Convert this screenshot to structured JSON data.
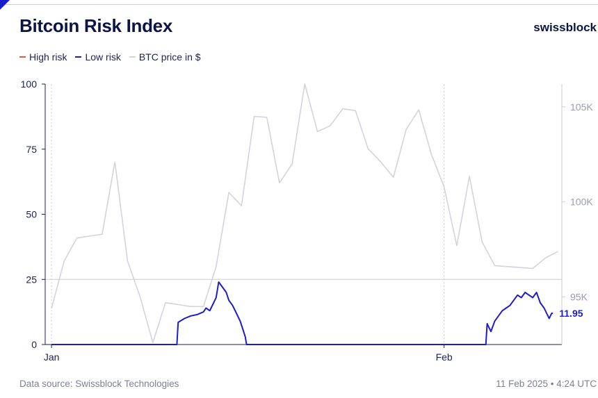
{
  "header": {
    "title": "Bitcoin Risk Index",
    "brand": "swissblock"
  },
  "footer": {
    "source": "Data source: Swissblock Technologies",
    "timestamp": "11 Feb 2025 • 4:24 UTC"
  },
  "colors": {
    "high_risk": "#e8563f",
    "low_risk": "#1c1ccf",
    "btc_price": "#d2d3df",
    "text": "#0b1446",
    "muted": "#7d7f94"
  },
  "chart_data": {
    "type": "line",
    "legend": [
      {
        "name": "High risk",
        "color": "#e8563f"
      },
      {
        "name": "Low risk",
        "color": "#1c1ccf"
      },
      {
        "name": "BTC price in $",
        "color": "#d2d3df"
      }
    ],
    "x_ticks": [
      {
        "label": "Jan",
        "day": 1
      },
      {
        "label": "Feb",
        "day": 32
      }
    ],
    "xlim": [
      0.5,
      41.3
    ],
    "left_axis": {
      "ticks": [
        0,
        25,
        50,
        75,
        100
      ],
      "ylim": [
        0,
        100
      ]
    },
    "right_axis": {
      "ticks": [
        {
          "label": "95K",
          "value": 95000
        },
        {
          "label": "100K",
          "value": 100000
        },
        {
          "label": "105K",
          "value": 105000
        }
      ],
      "ylim": [
        92500,
        106200
      ]
    },
    "reference_line": 25,
    "last_value_label": "11.95",
    "series": [
      {
        "name": "BTC price in $",
        "axis": "right",
        "points": [
          [
            1,
            94400
          ],
          [
            2,
            96900
          ],
          [
            3,
            98100
          ],
          [
            4,
            98200
          ],
          [
            5,
            98300
          ],
          [
            6,
            102100
          ],
          [
            7,
            96900
          ],
          [
            8,
            95000
          ],
          [
            9,
            92600
          ],
          [
            10,
            94700
          ],
          [
            11,
            94600
          ],
          [
            12,
            94500
          ],
          [
            13,
            94500
          ],
          [
            14,
            96600
          ],
          [
            15,
            100500
          ],
          [
            16,
            99800
          ],
          [
            17,
            104500
          ],
          [
            18,
            104450
          ],
          [
            19,
            101000
          ],
          [
            20,
            102000
          ],
          [
            21,
            106200
          ],
          [
            22,
            103700
          ],
          [
            23,
            104000
          ],
          [
            24,
            104900
          ],
          [
            25,
            104800
          ],
          [
            26,
            102800
          ],
          [
            27,
            102100
          ],
          [
            28,
            101300
          ],
          [
            29,
            103800
          ],
          [
            30,
            104850
          ],
          [
            31,
            102500
          ],
          [
            32,
            100800
          ],
          [
            33,
            97700
          ],
          [
            34,
            101350
          ],
          [
            35,
            97900
          ],
          [
            36,
            96650
          ],
          [
            37,
            96600
          ],
          [
            38,
            96550
          ],
          [
            39,
            96500
          ],
          [
            40,
            97050
          ],
          [
            41,
            97400
          ]
        ]
      },
      {
        "name": "Low risk",
        "axis": "left",
        "points": [
          [
            1,
            0
          ],
          [
            10.9,
            0
          ],
          [
            11.0,
            8.5
          ],
          [
            11.5,
            10
          ],
          [
            12,
            11
          ],
          [
            12.5,
            11.5
          ],
          [
            13,
            12.5
          ],
          [
            13.2,
            14
          ],
          [
            13.5,
            13
          ],
          [
            13.8,
            16
          ],
          [
            14.0,
            18
          ],
          [
            14.2,
            24
          ],
          [
            14.5,
            22
          ],
          [
            14.8,
            20
          ],
          [
            15.0,
            17
          ],
          [
            15.3,
            15
          ],
          [
            15.6,
            12
          ],
          [
            15.9,
            9
          ],
          [
            16.1,
            6
          ],
          [
            16.3,
            3
          ],
          [
            16.4,
            0
          ],
          [
            35.3,
            0
          ],
          [
            35.4,
            8
          ],
          [
            35.7,
            5
          ],
          [
            36.0,
            9
          ],
          [
            36.3,
            11
          ],
          [
            36.6,
            13
          ],
          [
            36.9,
            14
          ],
          [
            37.2,
            15
          ],
          [
            37.5,
            17
          ],
          [
            37.8,
            19
          ],
          [
            38.1,
            18
          ],
          [
            38.4,
            20
          ],
          [
            38.7,
            19
          ],
          [
            39.0,
            18
          ],
          [
            39.3,
            20
          ],
          [
            39.6,
            16
          ],
          [
            39.9,
            14
          ],
          [
            40.1,
            12
          ],
          [
            40.3,
            10
          ],
          [
            40.5,
            12
          ],
          [
            40.6,
            11.95
          ]
        ]
      },
      {
        "name": "High risk",
        "axis": "left",
        "points": []
      }
    ]
  }
}
